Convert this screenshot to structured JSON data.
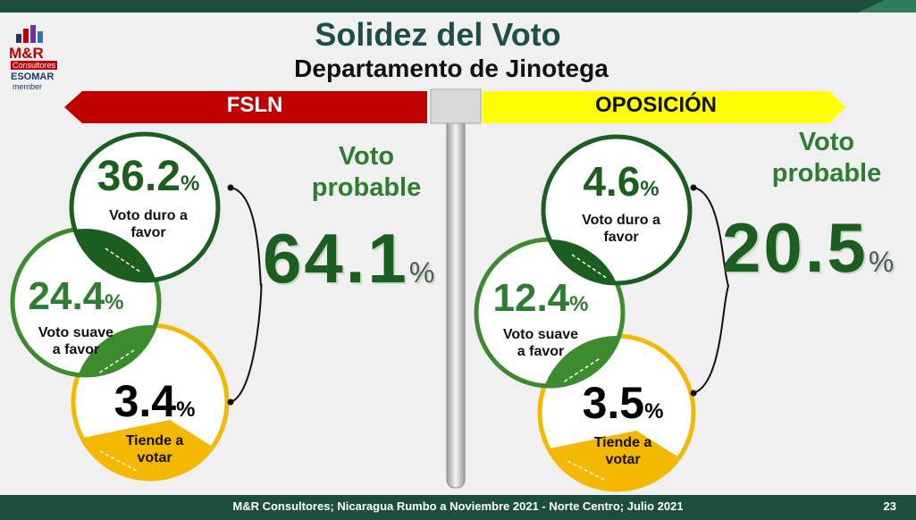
{
  "title": "Solidez del Voto",
  "subtitle": "Departamento de Jinotega",
  "logo": {
    "name": "M&R",
    "consultores": "Consultores",
    "esomar": "ESOMAR",
    "member": "member"
  },
  "colors": {
    "fsln": "#c00000",
    "oposicion": "#ffff00",
    "dark_green": "#1b5e20",
    "mid_green": "#3d8b2f",
    "yellow": "#f5b800",
    "footer": "#1d4d3c"
  },
  "left": {
    "banner": "FSLN",
    "probable_label_1": "Voto",
    "probable_label_2": "probable",
    "probable_value": "64.1",
    "probable_pct": "%",
    "duro": {
      "value": "36.2",
      "pct": "%",
      "label_1": "Voto duro a",
      "label_2": "favor"
    },
    "suave": {
      "value": "24.4",
      "pct": "%",
      "label_1": "Voto suave",
      "label_2": "a favor"
    },
    "tiende": {
      "value": "3.4",
      "pct": "%",
      "label_1": "Tiende a",
      "label_2": "votar"
    }
  },
  "right": {
    "banner": "OPOSICIÓN",
    "probable_label_1": "Voto",
    "probable_label_2": "probable",
    "probable_value": "20.5",
    "probable_pct": "%",
    "duro": {
      "value": "4.6",
      "pct": "%",
      "label_1": "Voto duro a",
      "label_2": "favor"
    },
    "suave": {
      "value": "12.4",
      "pct": "%",
      "label_1": "Voto suave",
      "label_2": "a favor"
    },
    "tiende": {
      "value": "3.5",
      "pct": "%",
      "label_1": "Tiende a",
      "label_2": "votar"
    }
  },
  "footer": {
    "source": "M&R Consultores; Nicaragua Rumbo a Noviembre 2021 - Norte Centro; Julio 2021",
    "page": "23"
  }
}
